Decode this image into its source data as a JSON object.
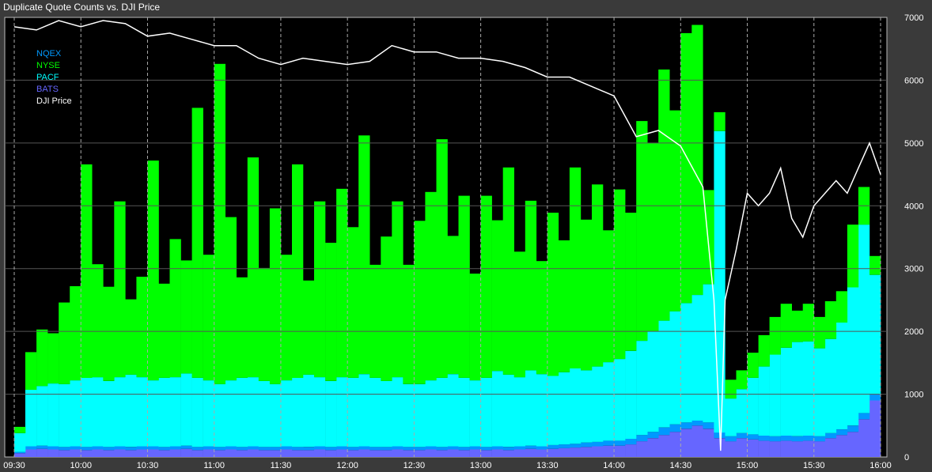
{
  "chart_data": {
    "type": "area",
    "title": "Duplicate Quote Counts vs. DJI Price",
    "x_ticks": [
      "09:30",
      "10:00",
      "10:30",
      "11:00",
      "11:30",
      "12:00",
      "12:30",
      "13:00",
      "13:30",
      "14:00",
      "14:30",
      "15:00",
      "15:30",
      "16:00"
    ],
    "y_ticks": [
      0,
      1000,
      2000,
      3000,
      4000,
      5000,
      6000,
      7000
    ],
    "ylim": [
      0,
      7000
    ],
    "xlim": [
      "09:30",
      "16:00"
    ],
    "y_axis_side": "right",
    "bin_minutes": 5,
    "grid": true,
    "legend_placement": "top-left",
    "background": "#000000",
    "stacked": true,
    "series": [
      {
        "name": "BATS",
        "color": "#6666ff",
        "values": [
          60,
          120,
          130,
          120,
          110,
          120,
          110,
          120,
          110,
          120,
          110,
          120,
          120,
          110,
          120,
          130,
          110,
          120,
          110,
          120,
          110,
          120,
          110,
          110,
          120,
          110,
          110,
          120,
          110,
          120,
          110,
          120,
          110,
          110,
          120,
          110,
          110,
          120,
          110,
          120,
          110,
          120,
          110,
          120,
          110,
          120,
          130,
          120,
          130,
          140,
          150,
          160,
          170,
          180,
          180,
          200,
          250,
          300,
          350,
          400,
          450,
          500,
          450,
          300,
          250,
          300,
          280,
          260,
          250,
          260,
          250,
          260,
          250,
          300,
          350,
          400,
          600,
          900
        ]
      },
      {
        "name": "NQEX",
        "color": "#0099ff",
        "values": [
          20,
          50,
          50,
          50,
          50,
          50,
          50,
          50,
          50,
          50,
          50,
          50,
          50,
          50,
          50,
          50,
          50,
          50,
          50,
          50,
          50,
          50,
          50,
          50,
          50,
          50,
          50,
          50,
          50,
          50,
          50,
          50,
          50,
          50,
          50,
          50,
          50,
          50,
          50,
          50,
          50,
          50,
          50,
          50,
          50,
          50,
          50,
          50,
          60,
          60,
          60,
          70,
          70,
          80,
          80,
          90,
          100,
          100,
          120,
          120,
          100,
          80,
          100,
          90,
          80,
          80,
          80,
          80,
          80,
          80,
          80,
          80,
          80,
          80,
          90,
          100,
          100,
          100
        ]
      },
      {
        "name": "PACF",
        "color": "#00ffff",
        "values": [
          300,
          900,
          950,
          1000,
          1000,
          1050,
          1100,
          1100,
          1050,
          1100,
          1150,
          1100,
          1050,
          1100,
          1100,
          1150,
          1100,
          1050,
          1000,
          1050,
          1100,
          1100,
          1050,
          1000,
          1050,
          1100,
          1150,
          1100,
          1050,
          1100,
          1100,
          1150,
          1100,
          1050,
          1100,
          1000,
          1000,
          1050,
          1100,
          1150,
          1100,
          1050,
          1100,
          1200,
          1150,
          1100,
          1200,
          1150,
          1100,
          1150,
          1200,
          1150,
          1200,
          1250,
          1300,
          1400,
          1500,
          1600,
          1700,
          1800,
          1900,
          2000,
          2200,
          4800,
          600,
          700,
          900,
          1100,
          1300,
          1400,
          1500,
          1500,
          1400,
          1500,
          1700,
          2200,
          3000,
          1900
        ]
      },
      {
        "name": "NYSE",
        "color": "#00ff00",
        "values": [
          100,
          600,
          900,
          800,
          1300,
          1500,
          3400,
          1800,
          1500,
          2800,
          1200,
          1600,
          3500,
          1500,
          2200,
          1800,
          4300,
          2000,
          5100,
          2600,
          1600,
          3500,
          1800,
          2800,
          2000,
          3400,
          1500,
          2800,
          2200,
          3000,
          2400,
          3800,
          1800,
          2300,
          2800,
          1900,
          2600,
          3000,
          3800,
          2200,
          2900,
          1700,
          2900,
          2400,
          3300,
          2000,
          2700,
          1800,
          2600,
          2100,
          3200,
          2400,
          2900,
          2100,
          2700,
          2200,
          3500,
          3000,
          4000,
          3200,
          4300,
          4300,
          1500,
          300,
          300,
          300,
          400,
          500,
          600,
          700,
          500,
          600,
          500,
          600,
          500,
          1000,
          600,
          300
        ]
      }
    ],
    "line_series": {
      "name": "DJI Price",
      "color": "#ffffff",
      "points": [
        [
          "09:30",
          6850
        ],
        [
          "09:40",
          6800
        ],
        [
          "09:50",
          6950
        ],
        [
          "10:00",
          6850
        ],
        [
          "10:10",
          6950
        ],
        [
          "10:20",
          6900
        ],
        [
          "10:30",
          6700
        ],
        [
          "10:40",
          6750
        ],
        [
          "10:50",
          6650
        ],
        [
          "11:00",
          6550
        ],
        [
          "11:10",
          6550
        ],
        [
          "11:20",
          6350
        ],
        [
          "11:30",
          6250
        ],
        [
          "11:40",
          6350
        ],
        [
          "11:50",
          6300
        ],
        [
          "12:00",
          6250
        ],
        [
          "12:10",
          6300
        ],
        [
          "12:20",
          6550
        ],
        [
          "12:30",
          6450
        ],
        [
          "12:40",
          6450
        ],
        [
          "12:50",
          6350
        ],
        [
          "13:00",
          6350
        ],
        [
          "13:10",
          6300
        ],
        [
          "13:20",
          6200
        ],
        [
          "13:30",
          6050
        ],
        [
          "13:40",
          6050
        ],
        [
          "13:50",
          5900
        ],
        [
          "14:00",
          5750
        ],
        [
          "14:10",
          5100
        ],
        [
          "14:20",
          5200
        ],
        [
          "14:30",
          4950
        ],
        [
          "14:40",
          4300
        ],
        [
          "14:45",
          2500
        ],
        [
          "14:48",
          100
        ],
        [
          "14:50",
          2500
        ],
        [
          "14:55",
          3300
        ],
        [
          "15:00",
          4200
        ],
        [
          "15:05",
          4000
        ],
        [
          "15:10",
          4200
        ],
        [
          "15:15",
          4600
        ],
        [
          "15:20",
          3800
        ],
        [
          "15:25",
          3500
        ],
        [
          "15:30",
          4000
        ],
        [
          "15:40",
          4400
        ],
        [
          "15:45",
          4200
        ],
        [
          "15:50",
          4600
        ],
        [
          "15:55",
          5000
        ],
        [
          "16:00",
          4500
        ]
      ]
    }
  }
}
